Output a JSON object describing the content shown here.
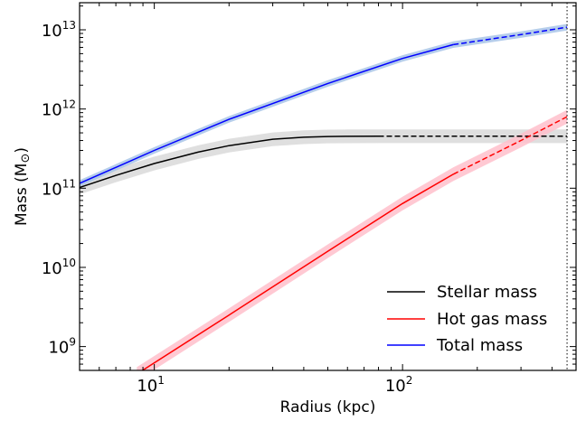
{
  "chart_data": {
    "type": "line",
    "xlabel": "Radius (kpc)",
    "ylabel_main": "Mass (M",
    "ylabel_close": ")",
    "x_scale": "log",
    "y_scale": "log",
    "xlim": [
      5,
      500
    ],
    "ylim": [
      500000000.0,
      22000000000000.0
    ],
    "x_ticks": [
      {
        "value": 10,
        "base": "10",
        "exp": "1"
      },
      {
        "value": 100,
        "base": "10",
        "exp": "2"
      }
    ],
    "y_ticks": [
      {
        "value": 1000000000.0,
        "base": "10",
        "exp": "9"
      },
      {
        "value": 10000000000.0,
        "base": "10",
        "exp": "10"
      },
      {
        "value": 100000000000.0,
        "base": "10",
        "exp": "11"
      },
      {
        "value": 1000000000000.0,
        "base": "10",
        "exp": "12"
      },
      {
        "value": 10000000000000.0,
        "base": "10",
        "exp": "13"
      }
    ],
    "vertical_line_x": 460,
    "legend_position": "lower right",
    "series": [
      {
        "name": "Stellar mass",
        "color": "#000000",
        "band_color": "#d9d9d9",
        "band_factor": 1.22,
        "solid": {
          "x": [
            5,
            7,
            10,
            15,
            20,
            30,
            40,
            50,
            60,
            80
          ],
          "y": [
            102000000000.0,
            145000000000.0,
            205000000000.0,
            285000000000.0,
            345000000000.0,
            415000000000.0,
            440000000000.0,
            450000000000.0,
            452000000000.0,
            453000000000.0
          ]
        },
        "dashed": {
          "x": [
            80,
            200,
            460
          ],
          "y": [
            453000000000.0,
            453000000000.0,
            453000000000.0
          ]
        }
      },
      {
        "name": "Hot gas mass",
        "color": "#ff0000",
        "band_color": "#ffc0cb",
        "band_factor": 1.22,
        "solid": {
          "x": [
            8.5,
            20,
            50,
            100,
            160
          ],
          "y": [
            450000000.0,
            2500000000.0,
            16000000000.0,
            64000000000.0,
            150000000000.0
          ]
        },
        "dashed": {
          "x": [
            160,
            300,
            460
          ],
          "y": [
            150000000000.0,
            400000000000.0,
            800000000000.0
          ]
        }
      },
      {
        "name": "Total mass",
        "color": "#0000ff",
        "band_color": "#a8c4e8",
        "band_factor": 1.1,
        "solid": {
          "x": [
            5,
            10,
            20,
            50,
            100,
            160
          ],
          "y": [
            115000000000.0,
            300000000000.0,
            740000000000.0,
            2100000000000.0,
            4350000000000.0,
            6500000000000.0
          ]
        },
        "dashed": {
          "x": [
            160,
            300,
            460
          ],
          "y": [
            6500000000000.0,
            8700000000000.0,
            10800000000000.0
          ]
        }
      }
    ]
  }
}
